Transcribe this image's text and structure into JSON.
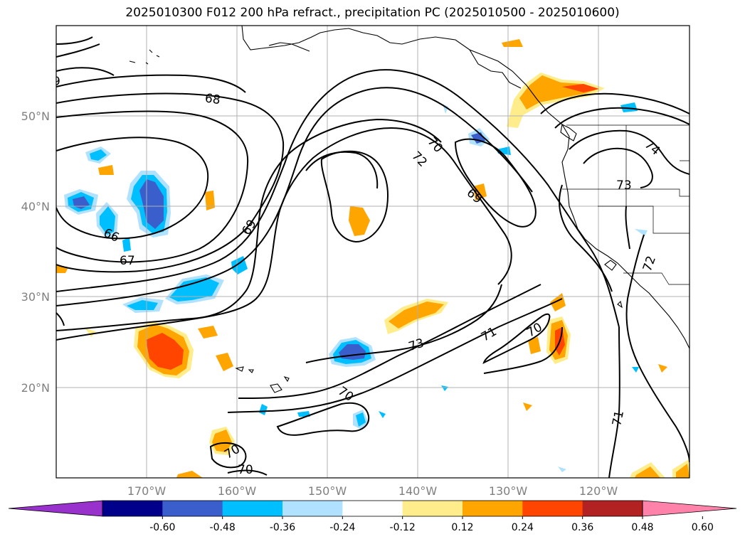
{
  "title": "2025010300 F012 200 hPa refract., precipitation PC (2025010500 - 2025010600)",
  "lat_labels": [
    "50°N",
    "40°N",
    "30°N",
    "20°N"
  ],
  "lon_labels": [
    "170°W",
    "160°W",
    "150°W",
    "140°W",
    "130°W",
    "120°W"
  ],
  "contour_labels": [
    "9",
    "68",
    "66",
    "67",
    "69",
    "70",
    "72",
    "69",
    "74",
    "73",
    "72",
    "73",
    "71",
    "70",
    "70",
    "70",
    "70",
    "71"
  ],
  "colorbar": {
    "tick_labels": [
      "-0.60",
      "-0.48",
      "-0.36",
      "-0.24",
      "-0.12",
      "0.12",
      "0.24",
      "0.36",
      "0.48",
      "0.60"
    ],
    "colors": [
      "#9932cc",
      "#00008b",
      "#3a5fcd",
      "#00bfff",
      "#b0e2ff",
      "#ffffff",
      "#ffec8b",
      "#ffa500",
      "#ff4500",
      "#b22222",
      "#ff82ab"
    ]
  },
  "chart_data": {
    "type": "heatmap",
    "title": "2025010300 F012 200 hPa refract., precipitation PC (2025010500 - 2025010600)",
    "variable_contours": "200 hPa refractivity",
    "variable_filled": "precipitation PC",
    "contour_levels": [
      66,
      67,
      68,
      69,
      70,
      71,
      72,
      73,
      74
    ],
    "fill_levels": [
      -0.6,
      -0.48,
      -0.36,
      -0.24,
      -0.12,
      0.12,
      0.24,
      0.36,
      0.48,
      0.6
    ],
    "lon_range": [
      -180,
      -110
    ],
    "lat_range": [
      10,
      60
    ],
    "grid": true
  }
}
